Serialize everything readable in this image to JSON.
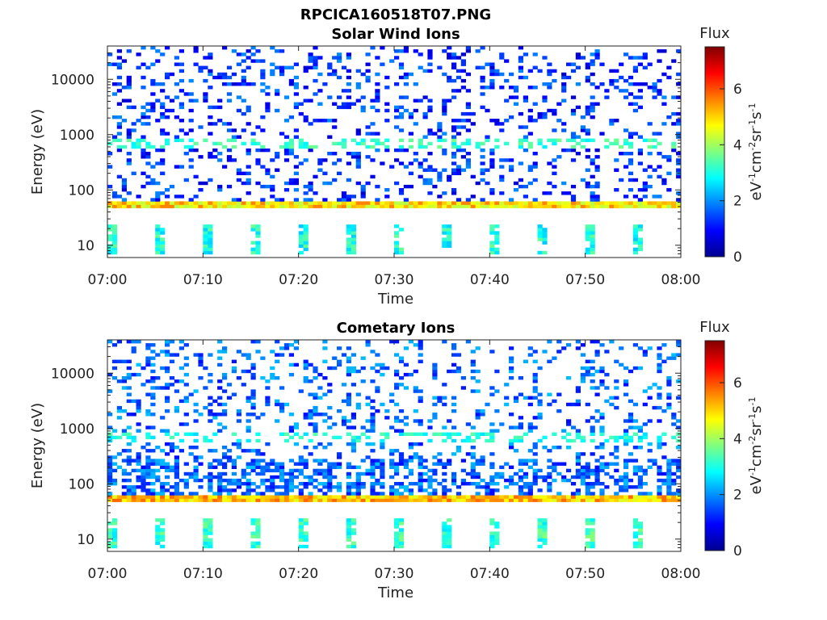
{
  "figure_title": "RPCICA160518T07.PNG",
  "chart_data": [
    {
      "type": "heatmap",
      "title": "Solar Wind Ions",
      "xlabel": "Time",
      "ylabel": "Energy (eV)",
      "x_range": [
        "07:00",
        "08:00"
      ],
      "x_ticks": [
        "07:00",
        "07:10",
        "07:20",
        "07:30",
        "07:40",
        "07:50",
        "08:00"
      ],
      "y_scale": "log",
      "y_range": [
        6,
        40000
      ],
      "y_ticks": [
        "10",
        "100",
        "1000",
        "10000"
      ],
      "colorbar": {
        "title": "Flux",
        "label": "eV-1cm-2sr-1s-1",
        "range": [
          0,
          7.5
        ],
        "ticks": [
          "0",
          "2",
          "4",
          "6"
        ],
        "colormap": "jet"
      },
      "features": {
        "band_energy_eV": [
          48,
          62
        ],
        "band_flux": 4.6,
        "band_peak_flux": 5.6,
        "low_energy_range_eV": [
          7,
          25
        ],
        "low_energy_flux": 3.0,
        "band_750eV_flux": 3.2,
        "background_flux": 1.0
      }
    },
    {
      "type": "heatmap",
      "title": "Cometary Ions",
      "xlabel": "Time",
      "ylabel": "Energy (eV)",
      "x_range": [
        "07:00",
        "08:00"
      ],
      "x_ticks": [
        "07:00",
        "07:10",
        "07:20",
        "07:30",
        "07:40",
        "07:50",
        "08:00"
      ],
      "y_scale": "log",
      "y_range": [
        6,
        40000
      ],
      "y_ticks": [
        "10",
        "100",
        "1000",
        "10000"
      ],
      "colorbar": {
        "title": "Flux",
        "label": "eV-1cm-2sr-1s-1",
        "range": [
          0,
          7.5
        ],
        "ticks": [
          "0",
          "2",
          "4",
          "6"
        ],
        "colormap": "jet"
      },
      "features": {
        "band_energy_eV": [
          48,
          62
        ],
        "band_flux": 4.9,
        "band_peak_flux": 5.8,
        "low_energy_range_eV": [
          7,
          25
        ],
        "low_energy_flux": 3.2,
        "band_750eV_flux": 3.0,
        "background_flux": 1.4
      }
    }
  ]
}
